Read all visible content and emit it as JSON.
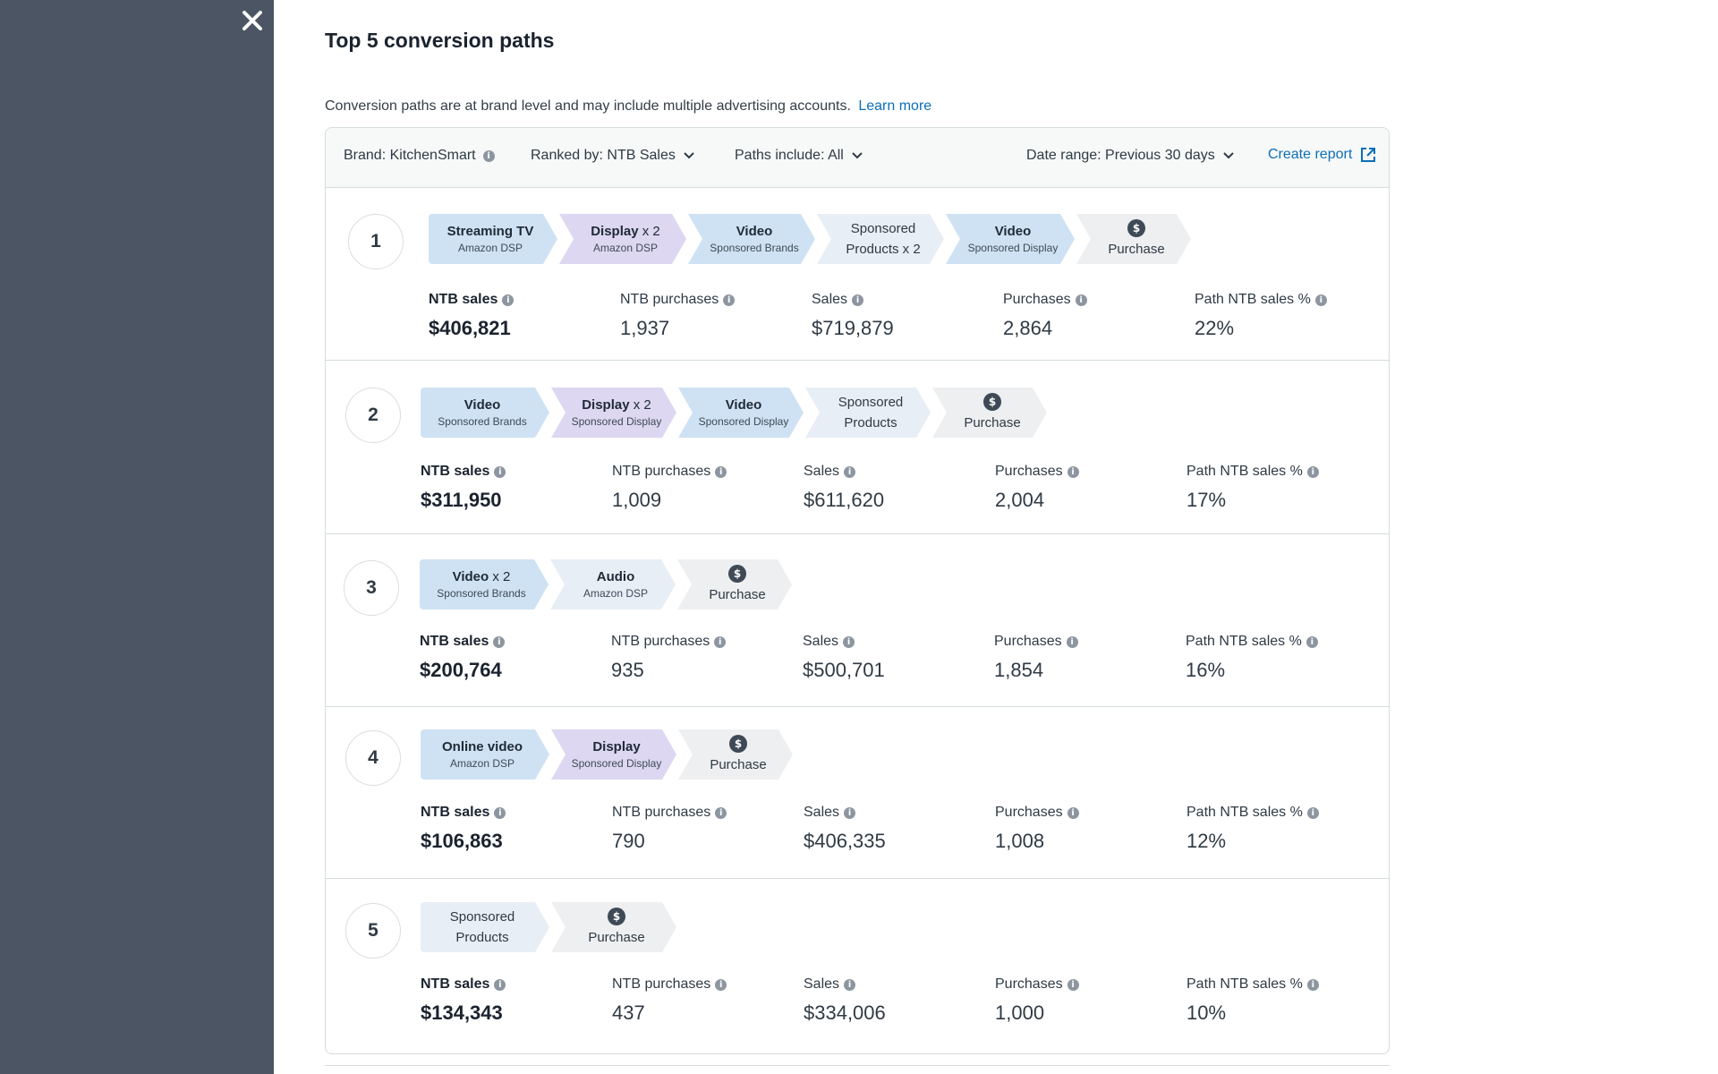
{
  "panel": {
    "title": "Top 5 conversion paths",
    "subtitle": "Conversion paths are at brand level and may include multiple advertising accounts.",
    "learn_more": "Learn more"
  },
  "filters": {
    "brand": "Brand: KitchenSmart",
    "ranked_by": "Ranked by: NTB Sales",
    "paths_include": "Paths include: All",
    "date_range": "Date range: Previous 30 days",
    "create_report": "Create report"
  },
  "labels": {
    "ntb_sales": "NTB sales",
    "ntb_purchases": "NTB purchases",
    "sales": "Sales",
    "purchases": "Purchases",
    "path_ntb_pct": "Path NTB sales %"
  },
  "paths": [
    {
      "rank": "1",
      "steps": [
        {
          "main": "Streaming TV",
          "mult": "",
          "sub": "Amazon DSP",
          "color": "blue"
        },
        {
          "main": "Display",
          "mult": " x 2",
          "sub": "Amazon DSP",
          "color": "purple"
        },
        {
          "main": "Video",
          "mult": "",
          "sub": "Sponsored Brands",
          "color": "blue"
        },
        {
          "plain1": "Sponsored",
          "plain2": "Products x 2",
          "color": "light"
        },
        {
          "main": "Video",
          "mult": "",
          "sub": "Sponsored Display",
          "color": "blue"
        },
        {
          "purchase": "Purchase",
          "color": "gray"
        }
      ],
      "ntb_sales": "$406,821",
      "ntb_purchases": "1,937",
      "sales": "$719,879",
      "purchases": "2,864",
      "path_ntb_pct": "22%"
    },
    {
      "rank": "2",
      "steps": [
        {
          "main": "Video",
          "mult": "",
          "sub": "Sponsored Brands",
          "color": "blue"
        },
        {
          "main": "Display",
          "mult": " x 2",
          "sub": "Sponsored Display",
          "color": "purple"
        },
        {
          "main": "Video",
          "mult": "",
          "sub": "Sponsored Display",
          "color": "blue"
        },
        {
          "plain1": "Sponsored",
          "plain2": "Products",
          "color": "light"
        },
        {
          "purchase": "Purchase",
          "color": "gray"
        }
      ],
      "ntb_sales": "$311,950",
      "ntb_purchases": "1,009",
      "sales": "$611,620",
      "purchases": "2,004",
      "path_ntb_pct": "17%"
    },
    {
      "rank": "3",
      "steps": [
        {
          "main": "Video",
          "mult": " x 2",
          "sub": "Sponsored Brands",
          "color": "blue"
        },
        {
          "main": "Audio",
          "mult": "",
          "sub": "Amazon DSP",
          "color": "light"
        },
        {
          "purchase": "Purchase",
          "color": "gray"
        }
      ],
      "ntb_sales": "$200,764",
      "ntb_purchases": "935",
      "sales": "$500,701",
      "purchases": "1,854",
      "path_ntb_pct": "16%"
    },
    {
      "rank": "4",
      "steps": [
        {
          "main": "Online video",
          "mult": "",
          "sub": "Amazon DSP",
          "color": "blue"
        },
        {
          "main": "Display",
          "mult": "",
          "sub": "Sponsored Display",
          "color": "purple"
        },
        {
          "purchase": "Purchase",
          "color": "gray"
        }
      ],
      "ntb_sales": "$106,863",
      "ntb_purchases": "790",
      "sales": "$406,335",
      "purchases": "1,008",
      "path_ntb_pct": "12%"
    },
    {
      "rank": "5",
      "steps": [
        {
          "plain1": "Sponsored",
          "plain2": "Products",
          "color": "light"
        },
        {
          "purchase": "Purchase",
          "color": "gray"
        }
      ],
      "ntb_sales": "$134,343",
      "ntb_purchases": "437",
      "sales": "$334,006",
      "purchases": "1,000",
      "path_ntb_pct": "10%"
    }
  ]
}
